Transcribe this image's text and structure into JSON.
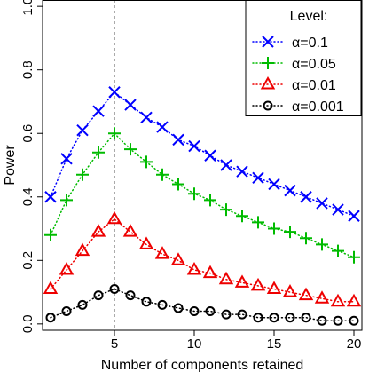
{
  "chart_data": {
    "type": "line",
    "title": "",
    "xlabel": "Number of components retained",
    "ylabel": "Power",
    "xlim": [
      0.5,
      20.5
    ],
    "ylim": [
      -0.02,
      1.02
    ],
    "x_ticks": [
      5,
      10,
      15,
      20
    ],
    "y_ticks": [
      0.0,
      0.2,
      0.4,
      0.6,
      0.8,
      1.0
    ],
    "x_tick_labels": [
      "5",
      "10",
      "15",
      "20"
    ],
    "y_tick_labels": [
      "0.0",
      "0.2",
      "0.4",
      "0.6",
      "0.8",
      "1.0"
    ],
    "vline_x": 5,
    "grid": false,
    "legend": {
      "title": "Level:",
      "placement": "top-right"
    },
    "x": [
      1,
      2,
      3,
      4,
      5,
      6,
      7,
      8,
      9,
      10,
      11,
      12,
      13,
      14,
      15,
      16,
      17,
      18,
      19,
      20
    ],
    "series": [
      {
        "name": "α=0.1",
        "color": "#0000ff",
        "marker": "cross",
        "values": [
          0.4,
          0.52,
          0.61,
          0.67,
          0.73,
          0.69,
          0.65,
          0.62,
          0.58,
          0.56,
          0.53,
          0.5,
          0.48,
          0.46,
          0.44,
          0.42,
          0.4,
          0.38,
          0.36,
          0.34
        ]
      },
      {
        "name": "α=0.05",
        "color": "#00bb00",
        "marker": "plus",
        "values": [
          0.28,
          0.39,
          0.47,
          0.54,
          0.6,
          0.55,
          0.51,
          0.47,
          0.44,
          0.41,
          0.39,
          0.36,
          0.34,
          0.32,
          0.3,
          0.29,
          0.27,
          0.25,
          0.23,
          0.21
        ]
      },
      {
        "name": "α=0.01",
        "color": "#ee0000",
        "marker": "triangle",
        "values": [
          0.11,
          0.17,
          0.23,
          0.29,
          0.33,
          0.29,
          0.25,
          0.22,
          0.2,
          0.17,
          0.16,
          0.14,
          0.13,
          0.12,
          0.11,
          0.1,
          0.09,
          0.08,
          0.07,
          0.07
        ]
      },
      {
        "name": "α=0.001",
        "color": "#000000",
        "marker": "circle",
        "values": [
          0.02,
          0.04,
          0.06,
          0.09,
          0.11,
          0.09,
          0.07,
          0.06,
          0.05,
          0.04,
          0.04,
          0.03,
          0.03,
          0.02,
          0.02,
          0.02,
          0.02,
          0.01,
          0.01,
          0.01
        ]
      }
    ]
  }
}
